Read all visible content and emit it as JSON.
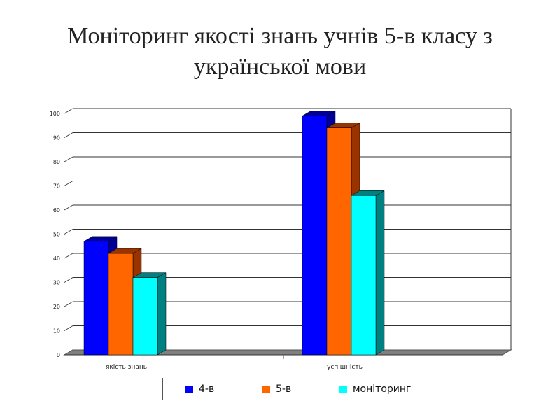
{
  "chart_data": {
    "type": "bar",
    "title_lines": [
      "Моніторинг якості знань учнів 5-в класу з",
      "української мови"
    ],
    "categories": [
      "якість знань",
      "успішність"
    ],
    "series": [
      {
        "name": "4-в",
        "values": [
          47,
          99
        ],
        "color": "#0000FF",
        "side": "#000099"
      },
      {
        "name": "5-в",
        "values": [
          42,
          94
        ],
        "color": "#FF6600",
        "side": "#993300"
      },
      {
        "name": "моніторинг",
        "values": [
          32,
          66
        ],
        "color": "#00FFFF",
        "side": "#008080"
      }
    ],
    "ylim": [
      0,
      100
    ],
    "yticks": [
      "0",
      "10",
      "20",
      "30",
      "40",
      "50",
      "60",
      "70",
      "80",
      "90",
      "100"
    ],
    "grid": true,
    "legend_position": "bottom"
  }
}
